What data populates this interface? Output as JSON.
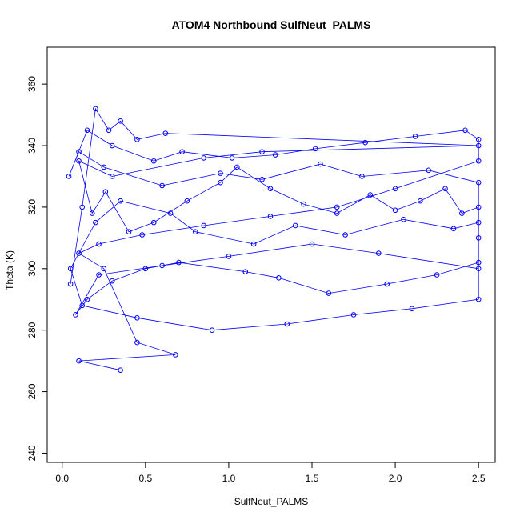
{
  "chart_data": {
    "type": "scatter",
    "title": "ATOM4 Northbound SulfNeut_PALMS",
    "xlabel": "SulfNeut_PALMS",
    "ylabel": "Theta (K)",
    "xlim": [
      -0.09,
      2.6
    ],
    "ylim": [
      237,
      372
    ],
    "xticks": [
      0.0,
      0.5,
      1.0,
      1.5,
      2.0,
      2.5
    ],
    "xtick_labels": [
      "0.0",
      "0.5",
      "1.0",
      "1.5",
      "2.0",
      "2.5"
    ],
    "yticks": [
      240,
      260,
      280,
      300,
      320,
      340,
      360
    ],
    "ytick_labels": [
      "240",
      "260",
      "280",
      "300",
      "320",
      "340",
      "360"
    ],
    "grid": false,
    "legend": "none",
    "marker": "open-circle",
    "connect_points": true,
    "series": [
      {
        "color": "#0000ff",
        "x": [
          0.05,
          0.12,
          0.2,
          0.28,
          0.35,
          0.45,
          0.62,
          2.5,
          1.2,
          0.85,
          0.3,
          0.1,
          0.18,
          0.26,
          0.4,
          0.55,
          0.75,
          0.95,
          1.05,
          1.25,
          1.45,
          1.65,
          1.85,
          2.0,
          2.15,
          2.3,
          2.4,
          2.5,
          2.5,
          2.5,
          1.9,
          1.5,
          1.0,
          0.6,
          0.22,
          0.08,
          0.15,
          0.3,
          0.5,
          0.7,
          1.1,
          1.3,
          1.6,
          1.95,
          2.25,
          2.5,
          2.5,
          2.1,
          1.75,
          1.35,
          0.9,
          0.45,
          0.12,
          0.05,
          0.2,
          0.35,
          0.65,
          0.8,
          1.15,
          1.4,
          1.7,
          2.05,
          2.35,
          2.5,
          2.5,
          2.2,
          1.8,
          1.55,
          1.2,
          0.95,
          0.6,
          0.25,
          0.1,
          0.04,
          0.15,
          0.3,
          0.55,
          0.72,
          1.02,
          1.28,
          1.52,
          1.82,
          2.12,
          2.42,
          2.5,
          2.5,
          2.0,
          1.65,
          1.25,
          0.85,
          0.48,
          0.22,
          0.1,
          0.25,
          0.45,
          0.68,
          0.1,
          0.35
        ],
        "y": [
          295,
          320,
          352,
          345,
          348,
          342,
          344,
          340,
          338,
          336,
          330,
          335,
          318,
          325,
          312,
          315,
          322,
          328,
          333,
          326,
          321,
          318,
          324,
          319,
          322,
          326,
          318,
          320,
          310,
          300,
          305,
          308,
          304,
          301,
          298,
          285,
          290,
          296,
          300,
          302,
          299,
          297,
          292,
          295,
          298,
          302,
          290,
          287,
          285,
          282,
          280,
          284,
          288,
          300,
          315,
          322,
          318,
          312,
          308,
          314,
          311,
          316,
          313,
          315,
          328,
          332,
          330,
          334,
          329,
          331,
          327,
          333,
          338,
          330,
          345,
          340,
          335,
          338,
          336,
          337,
          339,
          341,
          343,
          345,
          342,
          335,
          326,
          320,
          317,
          314,
          311,
          308,
          305,
          300,
          276,
          272,
          270,
          267
        ]
      }
    ]
  }
}
